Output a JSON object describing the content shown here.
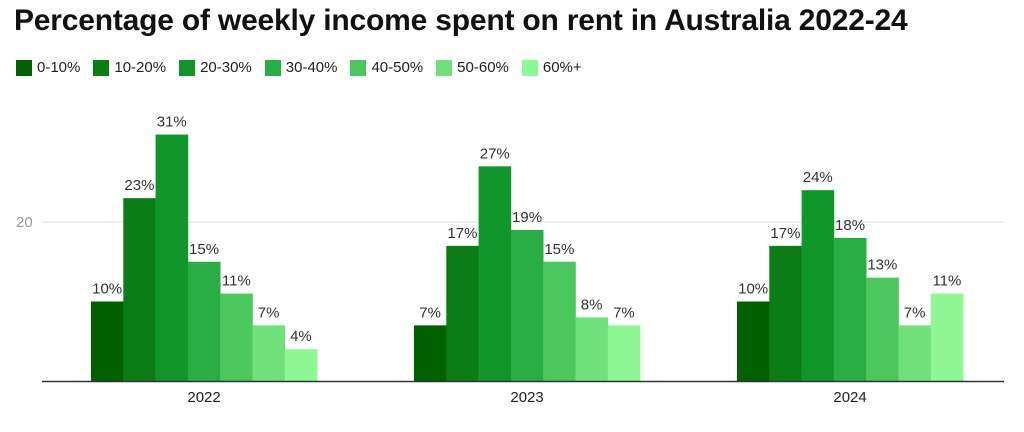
{
  "chart_data": {
    "type": "bar",
    "title": "Percentage of weekly income spent on rent in Australia 2022-24",
    "categories": [
      "2022",
      "2023",
      "2024"
    ],
    "series": [
      {
        "name": "0-10%",
        "color": "#006100",
        "values": [
          10,
          7,
          10
        ],
        "labels": [
          "10%",
          "7%",
          "10%"
        ]
      },
      {
        "name": "10-20%",
        "color": "#0a7d16",
        "values": [
          23,
          17,
          17
        ],
        "labels": [
          "23%",
          "17%",
          "17%"
        ]
      },
      {
        "name": "20-30%",
        "color": "#10962a",
        "values": [
          31,
          27,
          24
        ],
        "labels": [
          "31%",
          "27%",
          "24%"
        ]
      },
      {
        "name": "30-40%",
        "color": "#2aac45",
        "values": [
          15,
          19,
          18
        ],
        "labels": [
          "15%",
          "19%",
          "18%"
        ]
      },
      {
        "name": "40-50%",
        "color": "#4cc75e",
        "values": [
          11,
          15,
          13
        ],
        "labels": [
          "11%",
          "15%",
          "13%"
        ]
      },
      {
        "name": "50-60%",
        "color": "#6fe07c",
        "values": [
          7,
          8,
          7
        ],
        "labels": [
          "7%",
          "8%",
          "7%"
        ]
      },
      {
        "name": "60%+",
        "color": "#8ff795",
        "values": [
          4,
          7,
          11
        ],
        "labels": [
          "4%",
          "7%",
          "11%"
        ]
      }
    ],
    "yticks": [
      20
    ],
    "ytick_labels": [
      "20"
    ],
    "ylim": [
      0,
      31
    ],
    "xlabel": "",
    "ylabel": "",
    "legend_position": "top-left",
    "grid": true,
    "colors": {
      "gridline": "#dddddd",
      "axis": "#333333",
      "tick_text": "#999999"
    }
  }
}
